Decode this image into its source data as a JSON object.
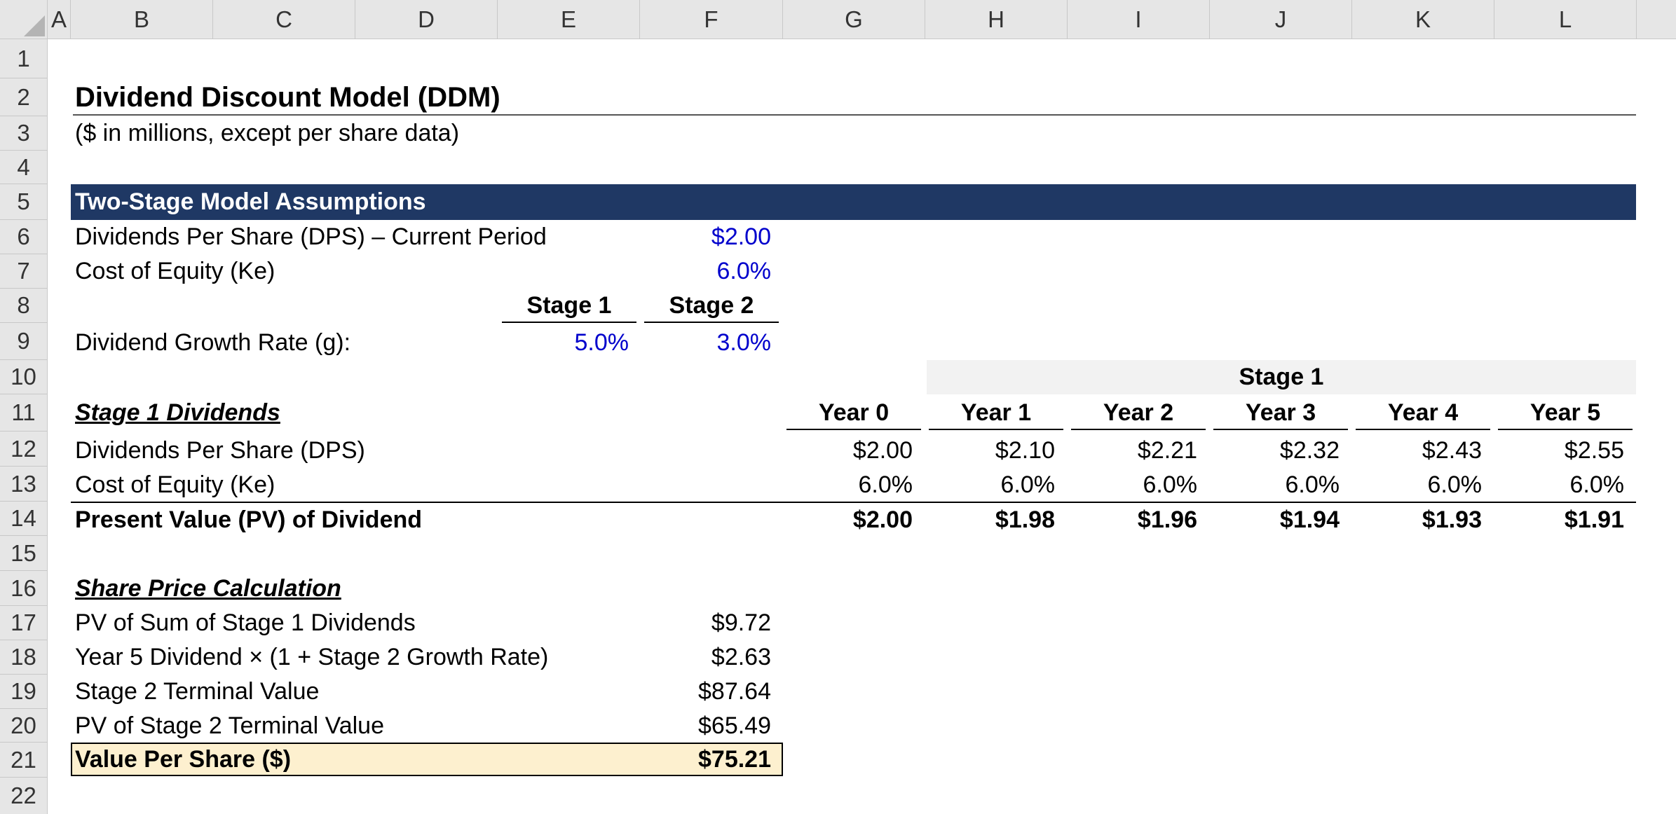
{
  "sheet": {
    "columns": [
      "A",
      "B",
      "C",
      "D",
      "E",
      "F",
      "G",
      "H",
      "I",
      "J",
      "K",
      "L"
    ],
    "rows": [
      "1",
      "2",
      "3",
      "4",
      "5",
      "6",
      "7",
      "8",
      "9",
      "10",
      "11",
      "12",
      "13",
      "14",
      "15",
      "16",
      "17",
      "18",
      "19",
      "20",
      "21",
      "22"
    ]
  },
  "model": {
    "title": "Dividend Discount Model (DDM)",
    "subtitle": "($ in millions, except per share data)",
    "assumptions_header": "Two-Stage Model Assumptions",
    "dps_current_label": "Dividends Per Share (DPS) – Current Period",
    "dps_current_value": "$2.00",
    "cost_of_equity_label": "Cost of Equity (Ke)",
    "cost_of_equity_value": "6.0%",
    "stage1_label": "Stage 1",
    "stage2_label": "Stage 2",
    "growth_label": "Dividend Growth Rate (g):",
    "growth_stage1": "5.0%",
    "growth_stage2": "3.0%"
  },
  "stage1_table": {
    "band_label": "Stage 1",
    "section_title": "Stage 1 Dividends",
    "years": [
      "Year 0",
      "Year 1",
      "Year 2",
      "Year 3",
      "Year 4",
      "Year 5"
    ],
    "dps_label": "Dividends Per Share (DPS)",
    "dps": [
      "$2.00",
      "$2.10",
      "$2.21",
      "$2.32",
      "$2.43",
      "$2.55"
    ],
    "ke_label": "Cost of Equity (Ke)",
    "ke": [
      "6.0%",
      "6.0%",
      "6.0%",
      "6.0%",
      "6.0%",
      "6.0%"
    ],
    "pv_label": "Present Value (PV) of Dividend",
    "pv": [
      "$2.00",
      "$1.98",
      "$1.96",
      "$1.94",
      "$1.93",
      "$1.91"
    ]
  },
  "share_price": {
    "section_title": "Share Price Calculation",
    "items": [
      {
        "label": "PV of Sum of Stage 1 Dividends",
        "value": "$9.72"
      },
      {
        "label": "Year 5 Dividend × (1 + Stage 2 Growth Rate)",
        "value": "$2.63"
      },
      {
        "label": "Stage 2 Terminal Value",
        "value": "$87.64"
      },
      {
        "label": "PV of Stage 2 Terminal Value",
        "value": "$65.49"
      }
    ],
    "value_per_share_label": "Value Per Share ($)",
    "value_per_share": "$75.21"
  }
}
